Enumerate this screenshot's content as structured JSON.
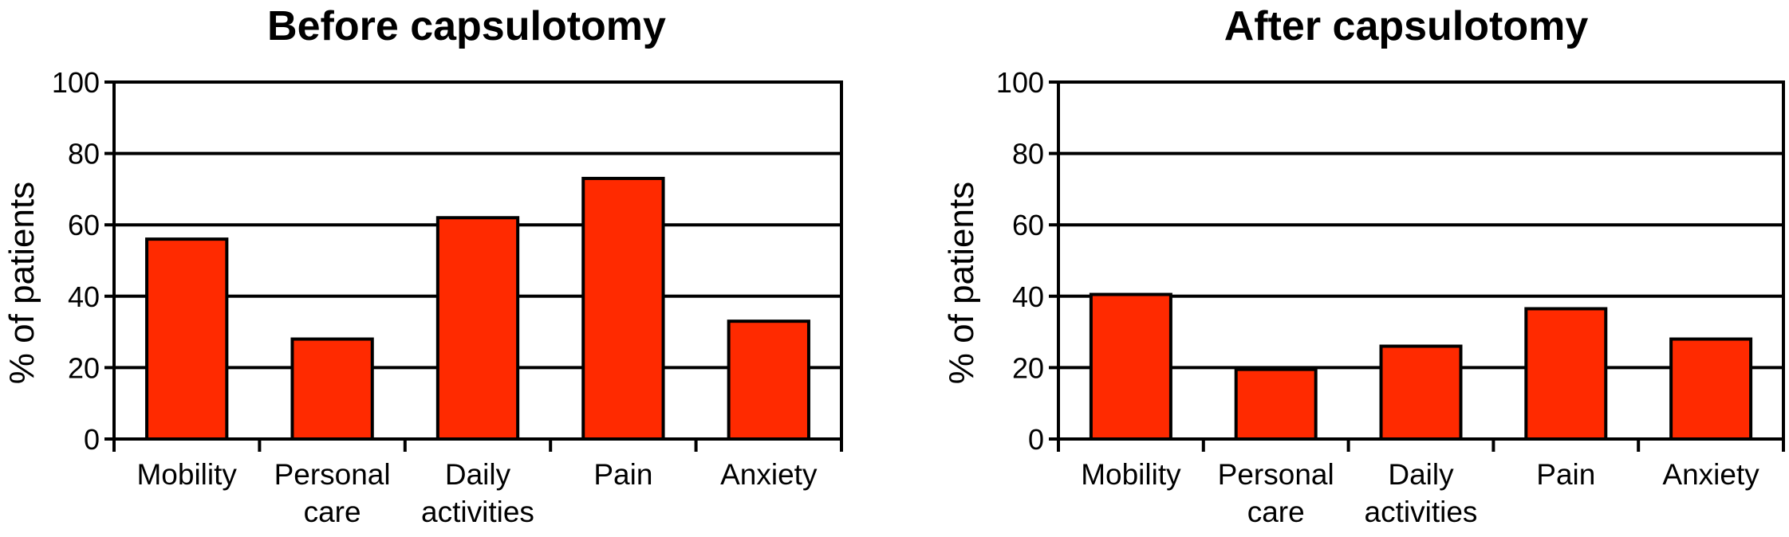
{
  "chart_data": [
    {
      "type": "bar",
      "title": "Before capsulotomy",
      "ylabel": "% of patients",
      "xlabel": "",
      "ylim": [
        0,
        100
      ],
      "yticks": [
        "0",
        "20",
        "40",
        "60",
        "80",
        "100"
      ],
      "categories": [
        [
          "Mobility"
        ],
        [
          "Personal",
          "care"
        ],
        [
          "Daily",
          "activities"
        ],
        [
          "Pain"
        ],
        [
          "Anxiety"
        ]
      ],
      "values": [
        56,
        28,
        62,
        73,
        33
      ],
      "bar_color": "#ff2a00",
      "grid": true
    },
    {
      "type": "bar",
      "title": "After capsulotomy",
      "ylabel": "% of patients",
      "xlabel": "",
      "ylim": [
        0,
        100
      ],
      "yticks": [
        "0",
        "20",
        "40",
        "60",
        "80",
        "100"
      ],
      "categories": [
        [
          "Mobility"
        ],
        [
          "Personal",
          "care"
        ],
        [
          "Daily",
          "activities"
        ],
        [
          "Pain"
        ],
        [
          "Anxiety"
        ]
      ],
      "values": [
        40.5,
        19.5,
        26,
        36.5,
        28
      ],
      "bar_color": "#ff2a00",
      "grid": true
    }
  ]
}
